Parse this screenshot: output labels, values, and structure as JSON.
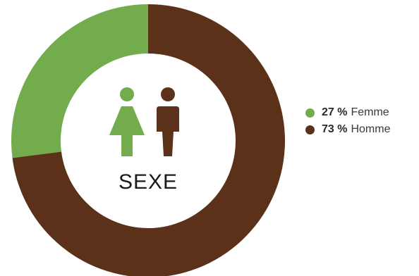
{
  "chart_data": {
    "type": "pie",
    "center_label": "SEXE",
    "unit": "%",
    "slices": [
      {
        "label": "Femme",
        "value": 27,
        "value_text": "27 %",
        "color": "#72ac4c"
      },
      {
        "label": "Homme",
        "value": 73,
        "value_text": "73 %",
        "color": "#5b3219"
      }
    ],
    "legend_position": "right",
    "icons": [
      "female-icon",
      "male-icon"
    ]
  }
}
